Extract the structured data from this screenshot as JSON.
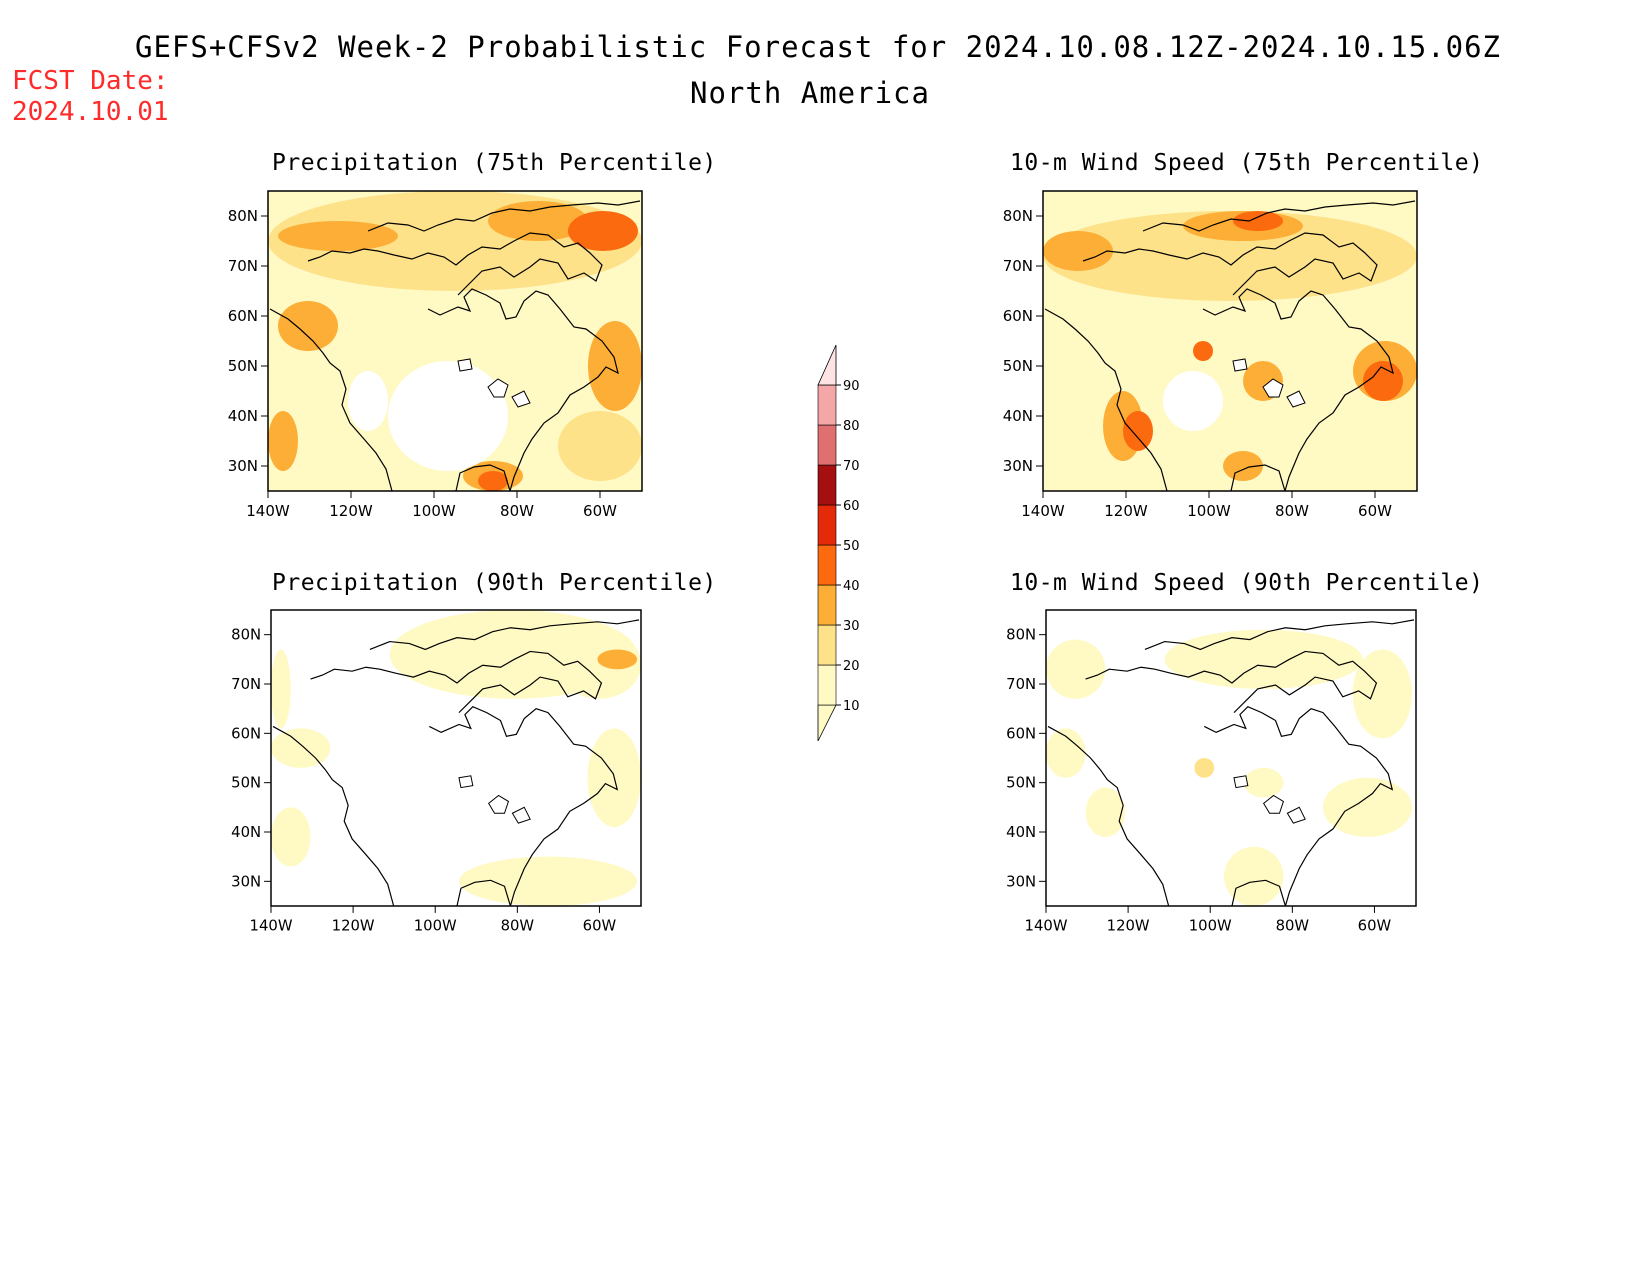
{
  "header": {
    "title": "GEFS+CFSv2 Week-2 Probabilistic Forecast for 2024.10.08.12Z-2024.10.15.06Z",
    "subtitle": "North America",
    "fcst_label": "FCST Date:",
    "fcst_date": "2024.10.01"
  },
  "panels": [
    {
      "title": "Precipitation (75th Percentile)",
      "id": "precip-75"
    },
    {
      "title": "10-m Wind Speed (75th Percentile)",
      "id": "wind-75"
    },
    {
      "title": "Precipitation (90th Percentile)",
      "id": "precip-90"
    },
    {
      "title": "10-m Wind Speed (90th Percentile)",
      "id": "wind-90"
    }
  ],
  "axes": {
    "lon_ticks": [
      "140W",
      "120W",
      "100W",
      "80W",
      "60W"
    ],
    "lat_ticks": [
      "80N",
      "70N",
      "60N",
      "50N",
      "40N",
      "30N"
    ]
  },
  "colorbar": {
    "levels": [
      "10",
      "20",
      "30",
      "40",
      "50",
      "60",
      "70",
      "80",
      "90"
    ],
    "colors": [
      "#fff9c4",
      "#fde28a",
      "#fdae36",
      "#fb6a0e",
      "#e52a0a",
      "#a50f0f",
      "#e07070",
      "#f4a7a7",
      "#fde3e3"
    ]
  }
}
